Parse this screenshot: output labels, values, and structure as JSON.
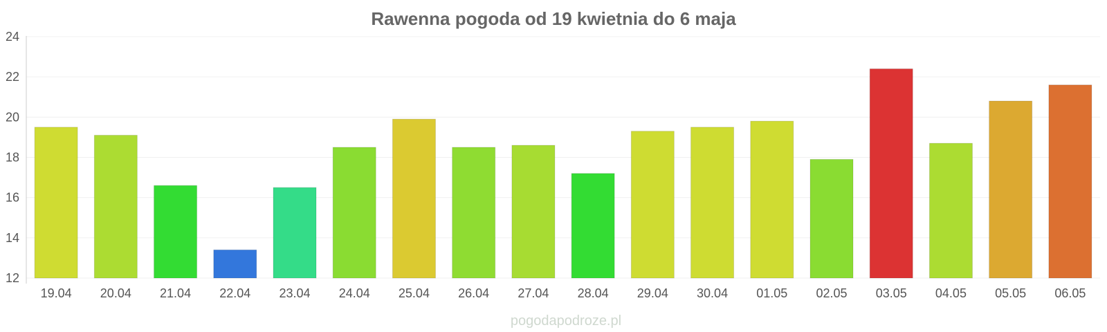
{
  "chart_data": {
    "type": "bar",
    "title": "Rawenna pogoda od 19 kwietnia do 6 maja",
    "xlabel": "",
    "ylabel": "",
    "ylim": [
      12,
      24
    ],
    "yticks": [
      "12",
      "14",
      "16",
      "18",
      "20",
      "22",
      "24"
    ],
    "grid": true,
    "legend": "none",
    "categories": [
      "19.04",
      "20.04",
      "21.04",
      "22.04",
      "23.04",
      "24.04",
      "25.04",
      "26.04",
      "27.04",
      "28.04",
      "29.04",
      "30.04",
      "01.05",
      "02.05",
      "03.05",
      "04.05",
      "05.05",
      "06.05"
    ],
    "values": [
      19.5,
      19.1,
      16.6,
      13.4,
      16.5,
      18.5,
      19.9,
      18.5,
      18.6,
      17.2,
      19.3,
      19.5,
      19.8,
      17.9,
      22.4,
      18.7,
      20.8,
      21.6
    ],
    "colors": [
      "#cfdc32",
      "#acdc32",
      "#33dc33",
      "#3377dc",
      "#34dc88",
      "#8adc32",
      "#dbca31",
      "#8fdc32",
      "#a7dc32",
      "#33dc33",
      "#cedc32",
      "#cedc32",
      "#cfdc32",
      "#8adc32",
      "#dc3333",
      "#acdc32",
      "#dca931",
      "#dc7031"
    ]
  },
  "watermark": "pogodapodroze.pl"
}
